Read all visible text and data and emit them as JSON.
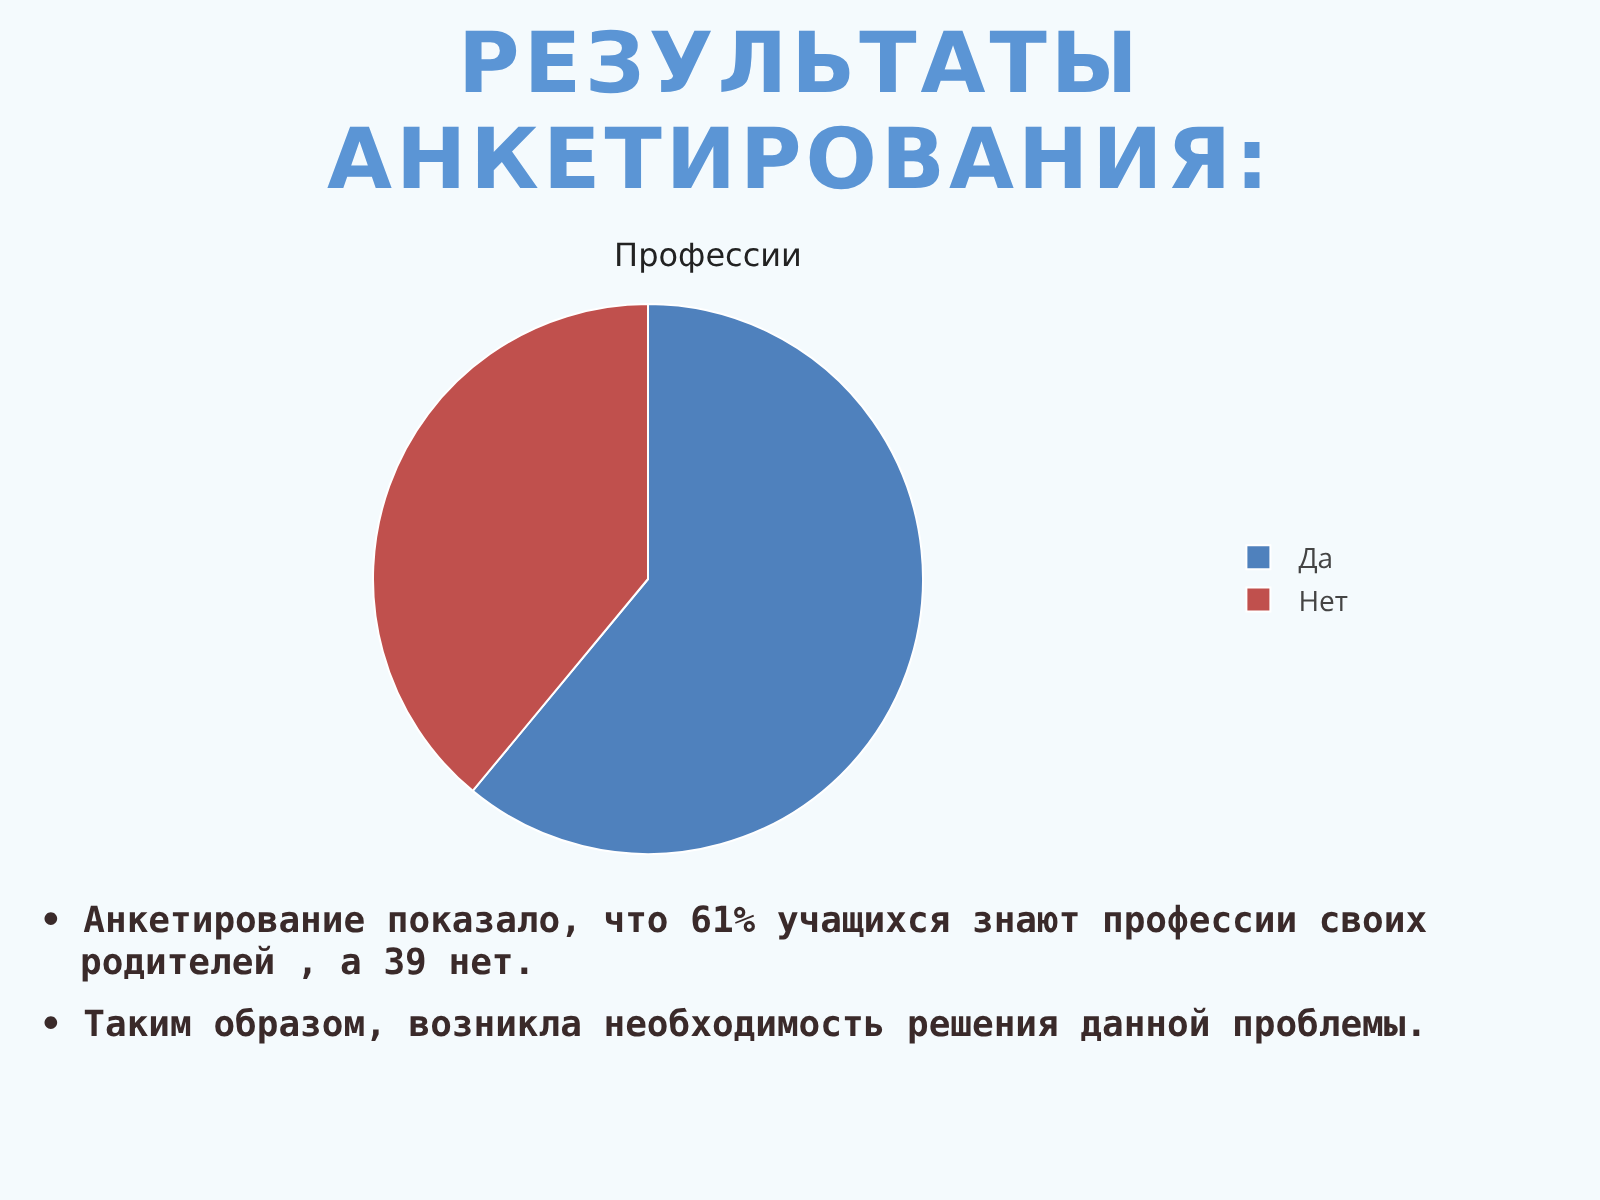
{
  "chart_data": {
    "type": "pie",
    "title": "РЕЗУЛЬТАТЫ АНКЕТИРОВАНИЯ:",
    "subtitle": "Профессии",
    "categories": [
      "Да",
      "Нет"
    ],
    "values": [
      61,
      39
    ],
    "colors": [
      "#4f81bd",
      "#c0504d"
    ],
    "legend": "right",
    "annotations": [
      "• Анкетирование показало, что  61% учащихся знают профессии своих родителей , а 39 нет.",
      "• Таким образом, возникла необходимость решения данной проблемы."
    ]
  }
}
